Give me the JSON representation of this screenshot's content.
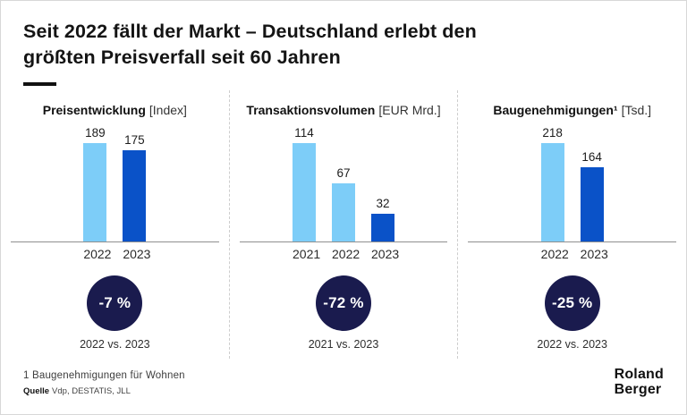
{
  "header": {
    "title_line1": "Seit 2022 fällt der Markt – Deutschland erlebt den",
    "title_line2": "größten Preisverfall seit 60 Jahren"
  },
  "colors": {
    "light_blue": "#7DCDF8",
    "dark_blue": "#0A52C8",
    "navy_circle": "#1A1B4E"
  },
  "chart_data": [
    {
      "type": "bar",
      "title": "Preisentwicklung",
      "unit": "[Index]",
      "categories": [
        "2022",
        "2023"
      ],
      "values": [
        189,
        175
      ],
      "bar_colors": [
        "light",
        "dark"
      ],
      "change": "-7 %",
      "comparison": "2022 vs. 2023"
    },
    {
      "type": "bar",
      "title": "Transaktionsvolumen",
      "unit": "[EUR Mrd.]",
      "categories": [
        "2021",
        "2022",
        "2023"
      ],
      "values": [
        114,
        67,
        32
      ],
      "bar_colors": [
        "light",
        "light",
        "dark"
      ],
      "change": "-72 %",
      "comparison": "2021 vs. 2023"
    },
    {
      "type": "bar",
      "title": "Baugenehmigungen¹",
      "unit": "[Tsd.]",
      "categories": [
        "2022",
        "2023"
      ],
      "values": [
        218,
        164
      ],
      "bar_colors": [
        "light",
        "dark"
      ],
      "change": "-25 %",
      "comparison": "2022 vs. 2023"
    }
  ],
  "footer": {
    "footnote": "1 Baugenehmigungen für Wohnen",
    "source_label": "Quelle",
    "source_text": "Vdp, DESTATIS, JLL",
    "logo_line1": "Roland",
    "logo_line2": "Berger"
  }
}
